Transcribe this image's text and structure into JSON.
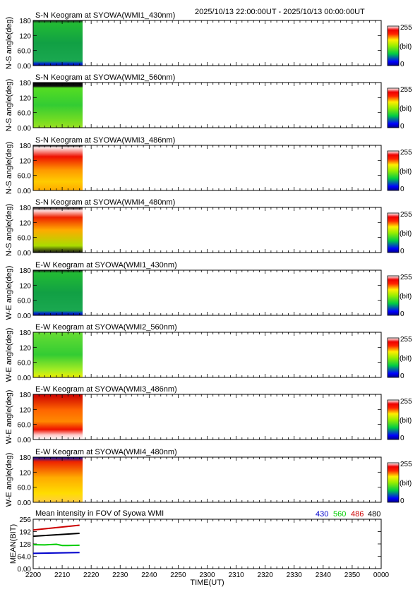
{
  "header": {
    "period": "2025/10/13 22:00:00UT - 2025/10/13 00:00:00UT"
  },
  "colors": {
    "line_430": "#0000cc",
    "line_560": "#00cc00",
    "line_486": "#cc0000",
    "line_480": "#000000"
  },
  "chart_data": [
    {
      "type": "heatmap",
      "title": "S-N Keogram at SYOWA(WMI1_430nm)",
      "ylabel": "N-S angle(deg)",
      "yticks": [
        "0.00",
        "60.0",
        "120",
        "180"
      ],
      "ylim": [
        0,
        180
      ],
      "colorbar": {
        "max": "255",
        "unit": "(bit)",
        "min": "0"
      },
      "palette": "g430"
    },
    {
      "type": "heatmap",
      "title": "S-N Keogram at SYOWA(WMI2_560nm)",
      "ylabel": "N-S angle(deg)",
      "yticks": [
        "0.00",
        "60.0",
        "120",
        "180"
      ],
      "ylim": [
        0,
        180
      ],
      "colorbar": {
        "max": "255",
        "unit": "(bit)",
        "min": "0"
      },
      "palette": "g560"
    },
    {
      "type": "heatmap",
      "title": "S-N Keogram at SYOWA(WMI3_486nm)",
      "ylabel": "N-S angle(deg)",
      "yticks": [
        "0.00",
        "60.0",
        "120",
        "180"
      ],
      "ylim": [
        0,
        180
      ],
      "colorbar": {
        "max": "255",
        "unit": "(bit)",
        "min": "0"
      },
      "palette": "r486sn"
    },
    {
      "type": "heatmap",
      "title": "S-N Keogram at SYOWA(WMI4_480nm)",
      "ylabel": "N-S angle(deg)",
      "yticks": [
        "0.00",
        "60.0",
        "120",
        "180"
      ],
      "ylim": [
        0,
        180
      ],
      "colorbar": {
        "max": "255",
        "unit": "(bit)",
        "min": "0"
      },
      "palette": "r480sn"
    },
    {
      "type": "heatmap",
      "title": "E-W Keogram at SYOWA(WMI1_430nm)",
      "ylabel": "W-E angle(deg)",
      "yticks": [
        "0.00",
        "60.0",
        "120",
        "180"
      ],
      "ylim": [
        0,
        180
      ],
      "colorbar": {
        "max": "255",
        "unit": "(bit)",
        "min": "0"
      },
      "palette": "g430"
    },
    {
      "type": "heatmap",
      "title": "E-W Keogram at SYOWA(WMI2_560nm)",
      "ylabel": "W-E angle(deg)",
      "yticks": [
        "0.00",
        "60.0",
        "120",
        "180"
      ],
      "ylim": [
        0,
        180
      ],
      "colorbar": {
        "max": "255",
        "unit": "(bit)",
        "min": "0"
      },
      "palette": "g560ew"
    },
    {
      "type": "heatmap",
      "title": "E-W Keogram at SYOWA(WMI3_486nm)",
      "ylabel": "W-E angle(deg)",
      "yticks": [
        "0.00",
        "60.0",
        "120",
        "180"
      ],
      "ylim": [
        0,
        180
      ],
      "colorbar": {
        "max": "255",
        "unit": "(bit)",
        "min": "0"
      },
      "palette": "r486ew"
    },
    {
      "type": "heatmap",
      "title": "E-W Keogram at SYOWA(WMI4_480nm)",
      "ylabel": "W-E angle(deg)",
      "yticks": [
        "0.00",
        "60.0",
        "120",
        "180"
      ],
      "ylim": [
        0,
        180
      ],
      "colorbar": {
        "max": "255",
        "unit": "(bit)",
        "min": "0"
      },
      "palette": "r480ew"
    },
    {
      "type": "line",
      "title": "Mean intensity in FOV of Syowa WMI",
      "ylabel": "MEAN(BIT)",
      "yticks": [
        "0.00",
        "64.0",
        "128",
        "192",
        "256"
      ],
      "ylim": [
        0,
        256
      ],
      "xlabel": "TIME(UT)",
      "xticks": [
        "2200",
        "2210",
        "2220",
        "2230",
        "2240",
        "2250",
        "2300",
        "2310",
        "2320",
        "2330",
        "2340",
        "2350",
        "0000"
      ],
      "xlim": [
        0,
        120
      ],
      "legend": [
        "430",
        "560",
        "486",
        "480"
      ],
      "series": [
        {
          "name": "486",
          "x": [
            0,
            16
          ],
          "values": [
            200,
            225
          ]
        },
        {
          "name": "480",
          "x": [
            0,
            16
          ],
          "values": [
            168,
            183
          ]
        },
        {
          "name": "560",
          "x": [
            0,
            4,
            8,
            10,
            12,
            16
          ],
          "values": [
            124,
            123,
            126,
            120,
            120,
            121
          ]
        },
        {
          "name": "430",
          "x": [
            0,
            16
          ],
          "values": [
            79,
            83
          ]
        }
      ]
    }
  ]
}
